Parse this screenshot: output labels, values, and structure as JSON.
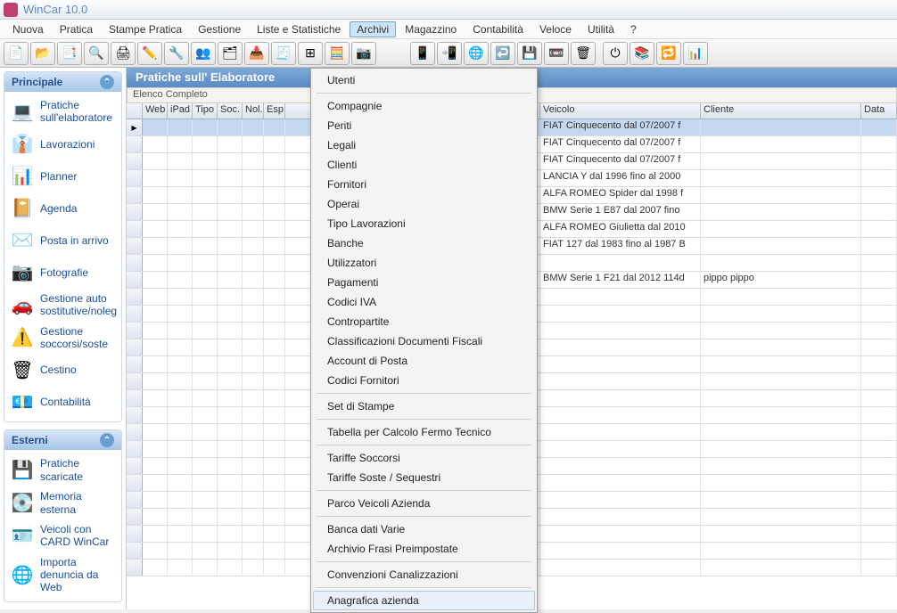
{
  "window": {
    "title": "WinCar 10.0"
  },
  "menubar": {
    "items": [
      "Nuova",
      "Pratica",
      "Stampe Pratica",
      "Gestione",
      "Liste e Statistiche",
      "Archivi",
      "Magazzino",
      "Contabilità",
      "Veloce",
      "Utilità",
      "?"
    ],
    "active_index": 5
  },
  "toolbar_icons": [
    "📄",
    "📂",
    "📑",
    "🔍",
    "🖨",
    "✏️",
    "🔧",
    "👥",
    "🗂",
    "📥",
    "🧾",
    "⊞",
    "🧮",
    "📷",
    "",
    "",
    "",
    "",
    "",
    "",
    "📱",
    "📲",
    "🌐",
    "↩️",
    "💾",
    "📼",
    "🗑",
    "",
    "⏻",
    "📚",
    "🔁",
    "📊"
  ],
  "sidebar": {
    "panels": [
      {
        "title": "Principale",
        "items": [
          {
            "icon": "💻",
            "label": "Pratiche sull'elaboratore"
          },
          {
            "icon": "👔",
            "label": "Lavorazioni"
          },
          {
            "icon": "📊",
            "label": "Planner"
          },
          {
            "icon": "📔",
            "label": "Agenda"
          },
          {
            "icon": "✉️",
            "label": "Posta in arrivo"
          },
          {
            "icon": "📷",
            "label": "Fotografie"
          },
          {
            "icon": "🚗",
            "label": "Gestione auto sostitutive/noleg"
          },
          {
            "icon": "⚠️",
            "label": "Gestione soccorsi/soste"
          },
          {
            "icon": "🗑",
            "label": "Cestino"
          },
          {
            "icon": "💶",
            "label": "Contabilità"
          }
        ]
      },
      {
        "title": "Esterni",
        "items": [
          {
            "icon": "💾",
            "label": "Pratiche scaricate"
          },
          {
            "icon": "💽",
            "label": "Memoria esterna"
          },
          {
            "icon": "🪪",
            "label": "Veicoli con CARD WinCar"
          },
          {
            "icon": "🌐",
            "label": "Importa denuncia da Web"
          }
        ]
      }
    ]
  },
  "content": {
    "title": "Pratiche sull' Elaboratore",
    "elenco": "Elenco Completo",
    "columns": [
      "Web",
      "iPad",
      "Tipo",
      "Soc.",
      "Nol.",
      "Esp",
      "",
      "Veicolo",
      "Cliente",
      "Data"
    ],
    "rows": [
      {
        "veicolo": "FIAT Cinquecento dal 07/2007 f",
        "cliente": "",
        "sel": true,
        "ptr": true
      },
      {
        "veicolo": "FIAT Cinquecento dal 07/2007 f",
        "cliente": ""
      },
      {
        "veicolo": "FIAT Cinquecento dal 07/2007 f",
        "cliente": ""
      },
      {
        "veicolo": "LANCIA Y dal 1996 fino al 2000",
        "cliente": ""
      },
      {
        "veicolo": "ALFA ROMEO Spider dal 1998 f",
        "cliente": ""
      },
      {
        "veicolo": "BMW Serie 1 E87 dal 2007 fino",
        "cliente": ""
      },
      {
        "veicolo": "ALFA ROMEO Giulietta dal 2010",
        "cliente": ""
      },
      {
        "veicolo": "FIAT 127 dal 1983 fino al 1987 B",
        "cliente": ""
      },
      {
        "veicolo": "",
        "cliente": ""
      },
      {
        "veicolo": "BMW Serie 1 F21 dal 2012 114d",
        "cliente": "pippo pippo"
      }
    ],
    "empty_rows": 17
  },
  "dropdown": {
    "groups": [
      [
        "Utenti"
      ],
      [
        "Compagnie",
        "Periti",
        "Legali",
        "Clienti",
        "Fornitori",
        "Operai",
        "Tipo Lavorazioni",
        "Banche",
        "Utilizzatori",
        "Pagamenti",
        "Codici IVA",
        "Contropartite",
        "Classificazioni Documenti Fiscali",
        "Account di Posta",
        "Codici Fornitori"
      ],
      [
        "Set di Stampe"
      ],
      [
        "Tabella per Calcolo Fermo Tecnico"
      ],
      [
        "Tariffe Soccorsi",
        "Tariffe Soste / Sequestri"
      ],
      [
        "Parco Veicoli Azienda"
      ],
      [
        "Banca dati Varie",
        "Archivio Frasi Preimpostate"
      ],
      [
        "Convenzioni Canalizzazioni"
      ],
      [
        "Anagrafica azienda"
      ]
    ],
    "highlight": "Anagrafica azienda"
  },
  "colors": {
    "titlebar_text": "#5a8bc8",
    "menu_active_bg": "#cce4f7",
    "header_gradient_from": "#7fa9d6",
    "header_gradient_to": "#5b8cc5",
    "panel_hdr_from": "#d5e5f7",
    "panel_hdr_to": "#a6c6e8",
    "link": "#1a4d9a",
    "row_sel": "#c4d8f0"
  }
}
